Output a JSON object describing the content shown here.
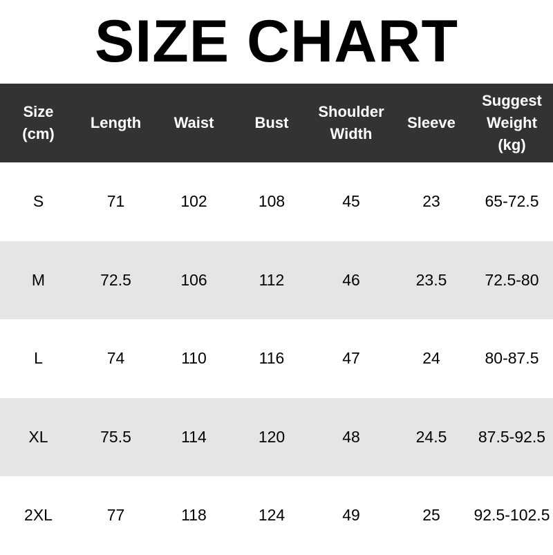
{
  "title": "SIZE CHART",
  "table": {
    "headers": [
      [
        "Size",
        "(cm)"
      ],
      [
        "Length"
      ],
      [
        "Waist"
      ],
      [
        "Bust"
      ],
      [
        "Shoulder",
        "Width"
      ],
      [
        "Sleeve"
      ],
      [
        "Suggest",
        "Weight",
        "(kg)"
      ]
    ],
    "rows": [
      [
        "S",
        "71",
        "102",
        "108",
        "45",
        "23",
        "65-72.5"
      ],
      [
        "M",
        "72.5",
        "106",
        "112",
        "46",
        "23.5",
        "72.5-80"
      ],
      [
        "L",
        "74",
        "110",
        "116",
        "47",
        "24",
        "80-87.5"
      ],
      [
        "XL",
        "75.5",
        "114",
        "120",
        "48",
        "24.5",
        "87.5-92.5"
      ],
      [
        "2XL",
        "77",
        "118",
        "124",
        "49",
        "25",
        "92.5-102.5"
      ]
    ]
  },
  "colors": {
    "header_bg": "#353233",
    "stripe_bg": "#e5e5e5"
  }
}
